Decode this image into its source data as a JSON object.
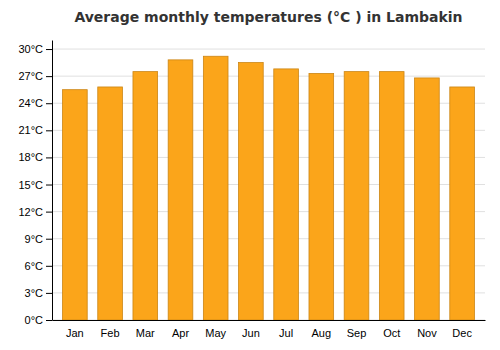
{
  "chart_data": {
    "type": "bar",
    "title": "Average monthly temperatures (°C ) in Lambakin",
    "categories": [
      "Jan",
      "Feb",
      "Mar",
      "Apr",
      "May",
      "Jun",
      "Jul",
      "Aug",
      "Sep",
      "Oct",
      "Nov",
      "Dec"
    ],
    "values": [
      25.5,
      25.8,
      27.5,
      28.8,
      29.2,
      28.5,
      27.8,
      27.3,
      27.5,
      27.5,
      26.8,
      25.8
    ],
    "color": "#FBA51A",
    "ylim": [
      0,
      31
    ],
    "yticks": [
      {
        "value": 0,
        "label": "0°C"
      },
      {
        "value": 3,
        "label": "3°C"
      },
      {
        "value": 6,
        "label": "6°C"
      },
      {
        "value": 9,
        "label": "9°C"
      },
      {
        "value": 12,
        "label": "12°C"
      },
      {
        "value": 15,
        "label": "15°C"
      },
      {
        "value": 18,
        "label": "18°C"
      },
      {
        "value": 21,
        "label": "21°C"
      },
      {
        "value": 24,
        "label": "24°C"
      },
      {
        "value": 27,
        "label": "27°C"
      },
      {
        "value": 30,
        "label": "30°C"
      }
    ],
    "grid": true
  }
}
